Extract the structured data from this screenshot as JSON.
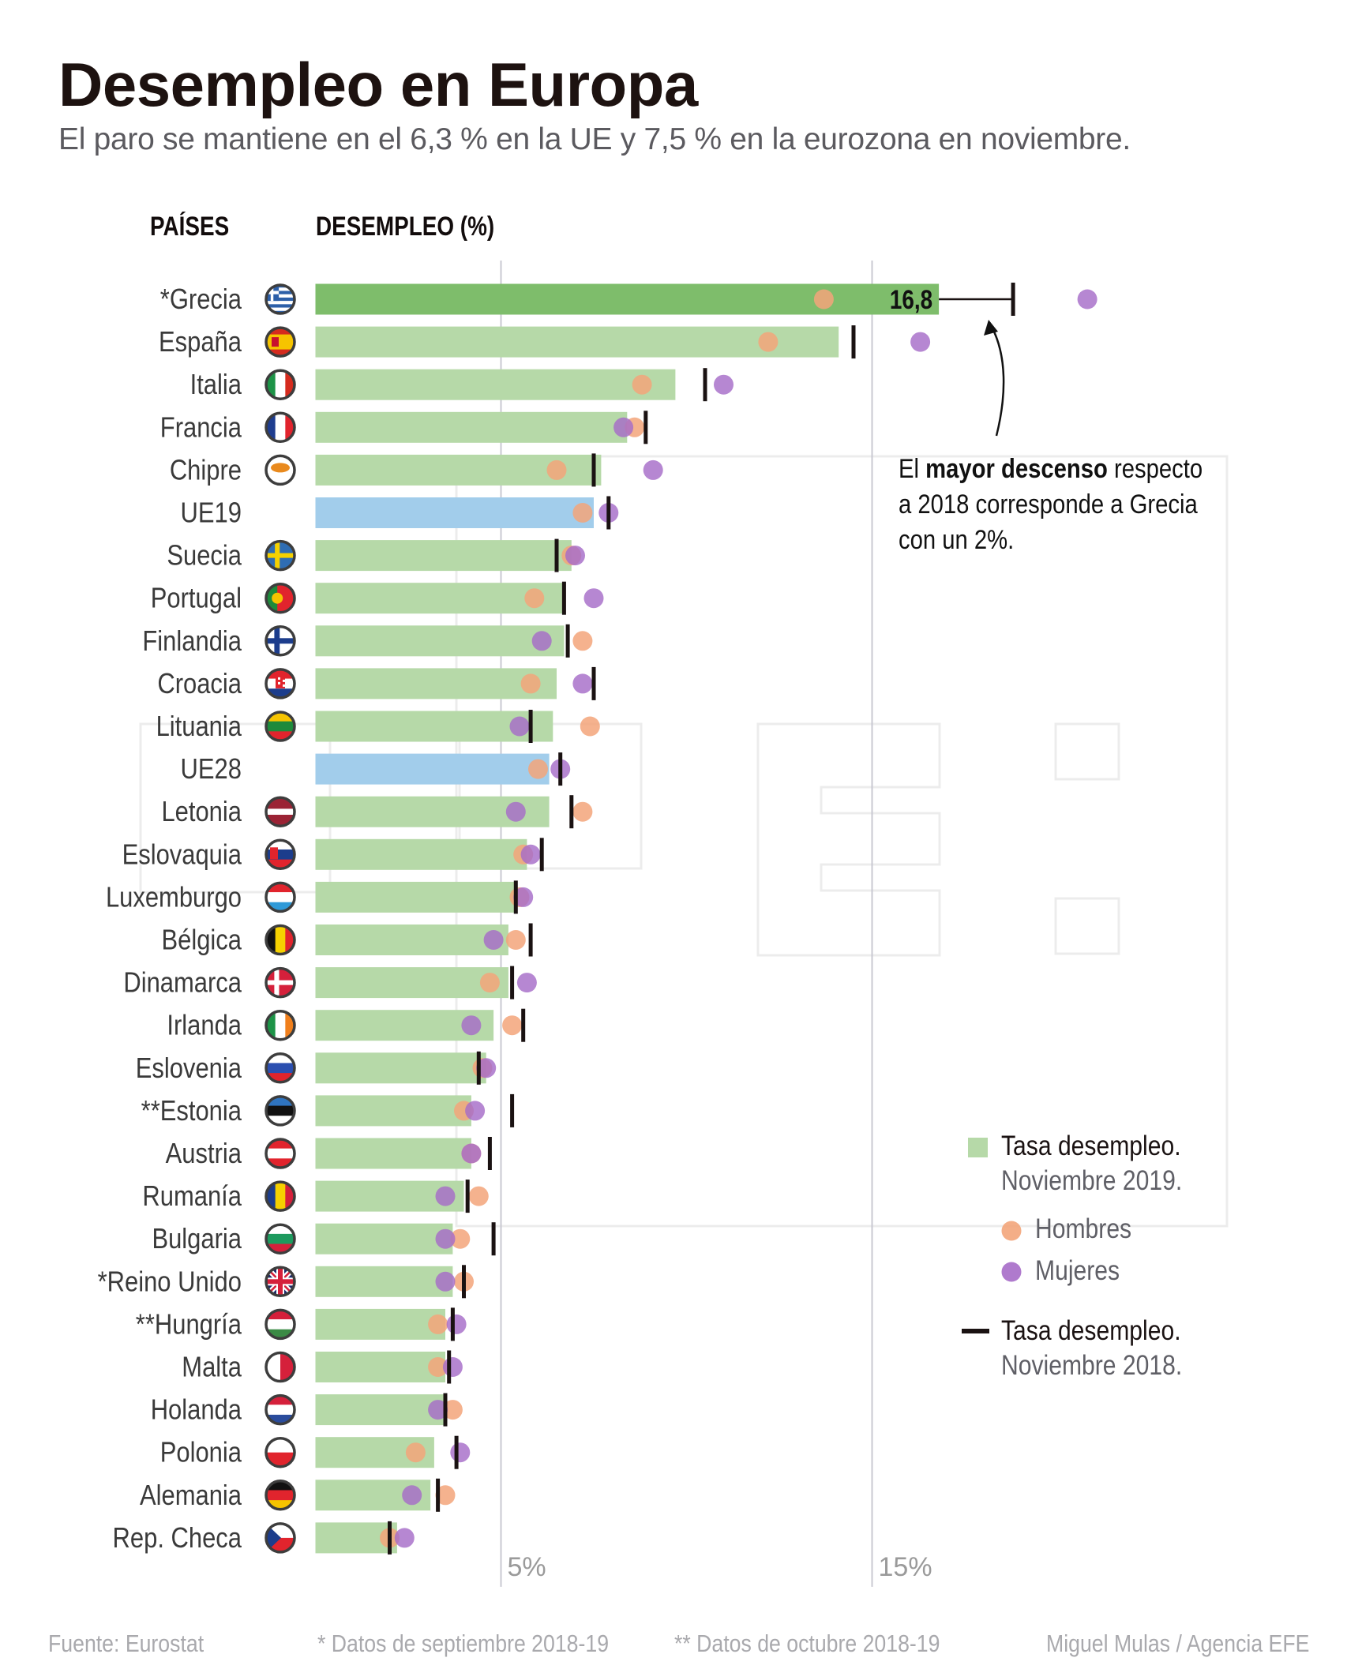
{
  "header": {
    "title": "Desempleo en Europa",
    "subtitle": "El paro se mantiene en el 6,3 % en la UE y 7,5 % en la eurozona en noviembre.",
    "col_countries": "PAÍSES",
    "col_unemployment": "DESEMPLEO (%)"
  },
  "annotation": {
    "pre": "El ",
    "bold": "mayor descenso",
    "post": " respecto",
    "line2": "a 2018 corresponde a Grecia",
    "line3": "con un 2%."
  },
  "legend": {
    "bar_line1": "Tasa desempleo.",
    "bar_line2": "Noviembre 2019.",
    "men": "Hombres",
    "women": "Mujeres",
    "tick_line1": "Tasa desempleo.",
    "tick_line2": "Noviembre 2018."
  },
  "footer": {
    "source": "Fuente: Eurostat",
    "note1": "* Datos de septiembre 2018-19",
    "note2": "** Datos de octubre 2018-19",
    "credit": "Miguel Mulas / Agencia EFE"
  },
  "colors": {
    "bar": "#b6d9a8",
    "bar_highlight": "#7ebd6b",
    "bar_eu": "#a2cdeb",
    "men": "#f3a57a",
    "women": "#a66cc8",
    "tick": "#1a1212",
    "grid": "#c9c9d2"
  },
  "chart_data": {
    "type": "bar",
    "orientation": "horizontal",
    "title": "Desempleo en Europa",
    "xlabel": "DESEMPLEO (%)",
    "ylabel": "PAÍSES",
    "xlim": [
      0,
      21
    ],
    "gridlines": [
      5,
      15
    ],
    "tick_labels": [
      "5%",
      "15%"
    ],
    "highlight_label": "16,8",
    "legend_position": "bottom-right",
    "categories": [
      "*Grecia",
      "España",
      "Italia",
      "Francia",
      "Chipre",
      "UE19",
      "Suecia",
      "Portugal",
      "Finlandia",
      "Croacia",
      "Lituania",
      "UE28",
      "Letonia",
      "Eslovaquia",
      "Luxemburgo",
      "Bélgica",
      "Dinamarca",
      "Irlanda",
      "Eslovenia",
      "**Estonia",
      "Austria",
      "Rumanía",
      "Bulgaria",
      "*Reino Unido",
      "**Hungría",
      "Malta",
      "Holanda",
      "Polonia",
      "Alemania",
      "Rep. Checa"
    ],
    "flags": [
      "gr",
      "es",
      "it",
      "fr",
      "cy",
      "",
      "se",
      "pt",
      "fi",
      "hr",
      "lt",
      "",
      "lv",
      "sk",
      "lu",
      "be",
      "dk",
      "ie",
      "si",
      "ee",
      "at",
      "ro",
      "bg",
      "gb",
      "hu",
      "mt",
      "nl",
      "pl",
      "de",
      "cz"
    ],
    "kinds": [
      "highlight",
      "country",
      "country",
      "country",
      "country",
      "eu",
      "country",
      "country",
      "country",
      "country",
      "country",
      "eu",
      "country",
      "country",
      "country",
      "country",
      "country",
      "country",
      "country",
      "country",
      "country",
      "country",
      "country",
      "country",
      "country",
      "country",
      "country",
      "country",
      "country",
      "country"
    ],
    "series": [
      {
        "name": "Tasa desempleo. Noviembre 2019",
        "mark": "bar",
        "values": [
          16.8,
          14.1,
          9.7,
          8.4,
          7.7,
          7.5,
          6.9,
          6.7,
          6.7,
          6.5,
          6.4,
          6.3,
          6.3,
          5.7,
          5.4,
          5.2,
          5.2,
          4.8,
          4.6,
          4.2,
          4.2,
          4.0,
          3.7,
          3.7,
          3.5,
          3.5,
          3.5,
          3.2,
          3.1,
          2.2
        ]
      },
      {
        "name": "Tasa desempleo. Noviembre 2018",
        "mark": "tick",
        "values": [
          18.8,
          14.5,
          10.5,
          8.9,
          7.5,
          7.9,
          6.5,
          6.7,
          6.8,
          7.5,
          5.8,
          6.6,
          6.9,
          6.1,
          5.4,
          5.8,
          5.3,
          5.6,
          4.4,
          5.3,
          4.7,
          4.1,
          4.8,
          4.0,
          3.7,
          3.6,
          3.5,
          3.8,
          3.3,
          2.0
        ]
      },
      {
        "name": "Hombres",
        "mark": "dot",
        "values": [
          13.7,
          12.2,
          8.8,
          8.6,
          6.5,
          7.2,
          6.9,
          5.9,
          7.2,
          5.8,
          7.4,
          6.0,
          7.2,
          5.6,
          5.5,
          5.4,
          4.7,
          5.3,
          4.5,
          4.0,
          4.2,
          4.4,
          3.9,
          4.0,
          3.3,
          3.3,
          3.7,
          2.7,
          3.5,
          2.0
        ]
      },
      {
        "name": "Mujeres",
        "mark": "dot",
        "values": [
          20.8,
          16.3,
          11.0,
          8.3,
          9.1,
          7.9,
          7.0,
          7.5,
          6.1,
          7.2,
          5.5,
          6.6,
          5.4,
          5.8,
          5.6,
          4.8,
          5.7,
          4.2,
          4.6,
          4.3,
          4.2,
          3.5,
          3.5,
          3.5,
          3.8,
          3.7,
          3.3,
          3.9,
          2.6,
          2.4
        ]
      }
    ]
  }
}
